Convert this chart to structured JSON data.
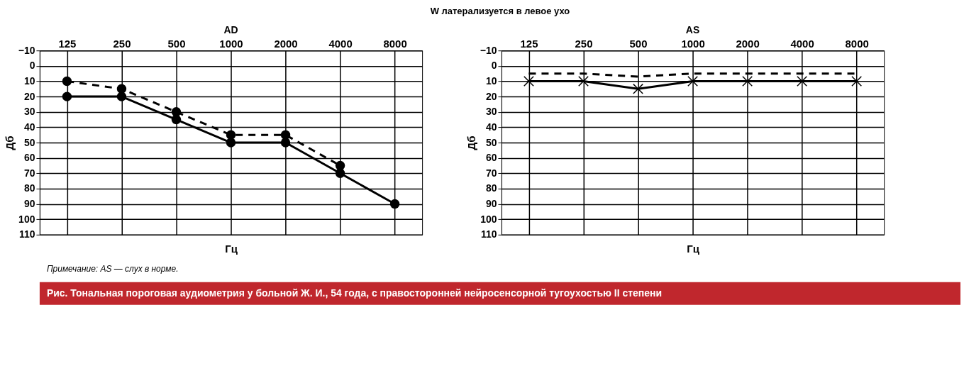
{
  "chart_data": [
    {
      "type": "line",
      "title": "AD",
      "xlabel": "Гц",
      "ylabel": "Дб",
      "categories": [
        "125",
        "250",
        "500",
        "1000",
        "2000",
        "4000",
        "8000"
      ],
      "ylim": [
        110,
        -10
      ],
      "yticks": [
        -10,
        0,
        10,
        20,
        30,
        40,
        50,
        60,
        70,
        80,
        90,
        100,
        110
      ],
      "grid": true,
      "series": [
        {
          "color": "#000000",
          "line_style": "solid",
          "marker": "circle",
          "values": [
            20,
            20,
            35,
            50,
            50,
            70,
            90
          ]
        },
        {
          "color": "#000000",
          "line_style": "dashed",
          "marker": "circle",
          "values": [
            10,
            15,
            30,
            45,
            45,
            65,
            null
          ]
        }
      ]
    },
    {
      "type": "line",
      "title": "AS",
      "xlabel": "Гц",
      "ylabel": "Дб",
      "categories": [
        "125",
        "250",
        "500",
        "1000",
        "2000",
        "4000",
        "8000"
      ],
      "ylim": [
        110,
        -10
      ],
      "yticks": [
        -10,
        0,
        10,
        20,
        30,
        40,
        50,
        60,
        70,
        80,
        90,
        100,
        110
      ],
      "grid": true,
      "series": [
        {
          "color": "#000000",
          "line_style": "solid",
          "marker": "cross",
          "values": [
            10,
            10,
            15,
            10,
            10,
            10,
            10
          ]
        },
        {
          "color": "#000000",
          "line_style": "dashed",
          "marker": "none",
          "values": [
            5,
            5,
            7,
            5,
            5,
            5,
            5
          ]
        }
      ]
    },
    {
      "type": "other",
      "title": "W латерализуется в левое ухо",
      "annotations": [
        "Примечание: AS — слух в норме.",
        "Рис. Тональная пороговая аудиометрия у больной Ж. И., 54 года, с правосторонней нейросенсорной тугоухостью II степени"
      ]
    }
  ]
}
